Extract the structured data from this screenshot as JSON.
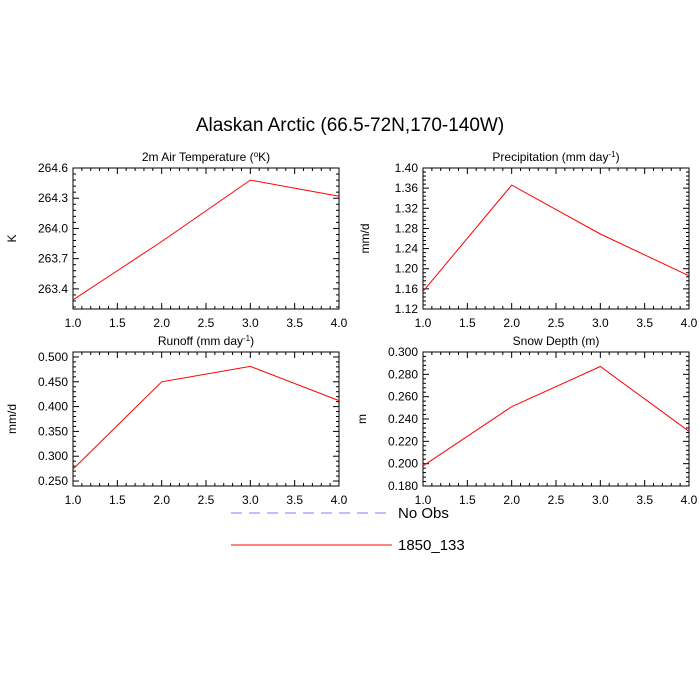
{
  "figure": {
    "title": "Alaskan Arctic (66.5-72N,170-140W)"
  },
  "legend": {
    "entries": [
      {
        "label": "No Obs",
        "color": "#7f7fff",
        "dash": true
      },
      {
        "label": "1850_133",
        "color": "#ff0000",
        "dash": false
      }
    ]
  },
  "chart_data": [
    {
      "type": "line",
      "title": "2m Air Temperature (°K)",
      "title_main": "2m Air Temperature (",
      "title_sup": "o",
      "title_post": "K)",
      "xlabel": "",
      "ylabel": "K",
      "xlim": [
        1.0,
        4.0
      ],
      "ylim": [
        263.2,
        264.6
      ],
      "xticks": [
        "1.0",
        "1.5",
        "2.0",
        "2.5",
        "3.0",
        "3.5",
        "4.0"
      ],
      "yticks": [
        "263.4",
        "263.7",
        "264.0",
        "264.3",
        "264.6"
      ],
      "series": [
        {
          "name": "1850_133",
          "color": "#ff0000",
          "x": [
            1,
            2,
            3,
            4
          ],
          "y": [
            263.29,
            263.87,
            264.48,
            264.32
          ]
        }
      ]
    },
    {
      "type": "line",
      "title": "Precipitation (mm day-1)",
      "title_main": "Precipitation (mm day",
      "title_sup": "-1",
      "title_post": ")",
      "xlabel": "",
      "ylabel": "mm/d",
      "xlim": [
        1.0,
        4.0
      ],
      "ylim": [
        1.12,
        1.4
      ],
      "xticks": [
        "1.0",
        "1.5",
        "2.0",
        "2.5",
        "3.0",
        "3.5",
        "4.0"
      ],
      "yticks": [
        "1.12",
        "1.16",
        "1.20",
        "1.24",
        "1.28",
        "1.32",
        "1.36",
        "1.40"
      ],
      "series": [
        {
          "name": "1850_133",
          "color": "#ff0000",
          "x": [
            1,
            2,
            3,
            4
          ],
          "y": [
            1.155,
            1.366,
            1.269,
            1.186
          ]
        }
      ]
    },
    {
      "type": "line",
      "title": "Runoff (mm day-1)",
      "title_main": "Runoff (mm day",
      "title_sup": "-1",
      "title_post": ")",
      "xlabel": "",
      "ylabel": "mm/d",
      "xlim": [
        1.0,
        4.0
      ],
      "ylim": [
        0.24,
        0.51
      ],
      "xticks": [
        "1.0",
        "1.5",
        "2.0",
        "2.5",
        "3.0",
        "3.5",
        "4.0"
      ],
      "yticks": [
        "0.250",
        "0.300",
        "0.350",
        "0.400",
        "0.450",
        "0.500"
      ],
      "series": [
        {
          "name": "1850_133",
          "color": "#ff0000",
          "x": [
            1,
            2,
            3,
            4
          ],
          "y": [
            0.274,
            0.45,
            0.481,
            0.412
          ]
        }
      ]
    },
    {
      "type": "line",
      "title": "Snow Depth (m)",
      "title_main": "Snow Depth (m)",
      "title_sup": "",
      "title_post": "",
      "xlabel": "",
      "ylabel": "m",
      "xlim": [
        1.0,
        4.0
      ],
      "ylim": [
        0.18,
        0.3
      ],
      "xticks": [
        "1.0",
        "1.5",
        "2.0",
        "2.5",
        "3.0",
        "3.5",
        "4.0"
      ],
      "yticks": [
        "0.180",
        "0.200",
        "0.220",
        "0.240",
        "0.260",
        "0.280",
        "0.300"
      ],
      "series": [
        {
          "name": "1850_133",
          "color": "#ff0000",
          "x": [
            1,
            2,
            3,
            4
          ],
          "y": [
            0.198,
            0.251,
            0.287,
            0.229
          ]
        }
      ]
    }
  ]
}
